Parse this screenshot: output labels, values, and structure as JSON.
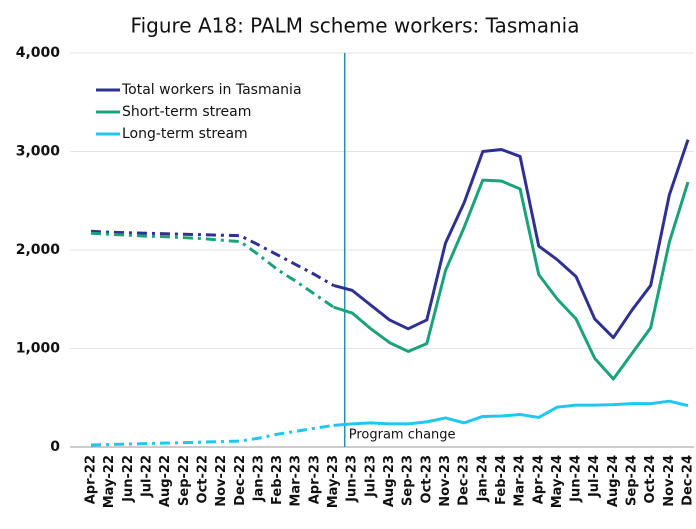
{
  "chart_data": {
    "type": "line",
    "title": "Figure A18: PALM scheme workers: Tasmania",
    "categories": [
      "Apr-22",
      "May-22",
      "Jun-22",
      "Jul-22",
      "Aug-22",
      "Sep-22",
      "Oct-22",
      "Nov-22",
      "Dec-22",
      "Jan-23",
      "Feb-23",
      "Mar-23",
      "Apr-23",
      "May-23",
      "Jun-23",
      "Jul-23",
      "Aug-23",
      "Sep-23",
      "Oct-23",
      "Nov-23",
      "Dec-23",
      "Jan-24",
      "Feb-24",
      "Mar-24",
      "Apr-24",
      "May-24",
      "Jun-24",
      "Jul-24",
      "Aug-24",
      "Sep-24",
      "Oct-24",
      "Nov-24",
      "Dec-24"
    ],
    "series": [
      {
        "name": "Total workers in Tasmania",
        "color": "#2e3192",
        "values": [
          2190,
          2180,
          2175,
          2170,
          2165,
          2160,
          2155,
          2150,
          2145,
          2050,
          1950,
          1850,
          1750,
          1640,
          1590,
          1440,
          1290,
          1200,
          1290,
          2070,
          2480,
          3000,
          3020,
          2950,
          2040,
          1900,
          1730,
          1300,
          1110,
          1390,
          1640,
          2560,
          3120
        ]
      },
      {
        "name": "Short-term stream",
        "color": "#1aa37a",
        "values": [
          2170,
          2160,
          2150,
          2140,
          2135,
          2125,
          2115,
          2100,
          2085,
          1950,
          1800,
          1680,
          1550,
          1420,
          1360,
          1200,
          1060,
          970,
          1050,
          1790,
          2230,
          2710,
          2700,
          2620,
          1750,
          1500,
          1300,
          900,
          690,
          950,
          1210,
          2080,
          2690
        ]
      },
      {
        "name": "Long-term stream",
        "color": "#1ec8f0",
        "values": [
          20,
          25,
          30,
          35,
          40,
          45,
          50,
          55,
          60,
          90,
          130,
          160,
          190,
          220,
          235,
          245,
          235,
          235,
          255,
          295,
          245,
          310,
          315,
          330,
          300,
          405,
          425,
          425,
          430,
          440,
          440,
          465,
          420
        ]
      }
    ],
    "dashed_until": "May-23",
    "annotation": "Program change",
    "ylim": [
      0,
      4000
    ],
    "yticks": [
      0,
      {
        "value": 1000,
        "label": "1,000"
      },
      {
        "value": 2000,
        "label": "2,000"
      },
      {
        "value": 3000,
        "label": "3,000"
      },
      {
        "value": 4000,
        "label": "4,000"
      }
    ],
    "grid": true,
    "legend": "top-left"
  }
}
